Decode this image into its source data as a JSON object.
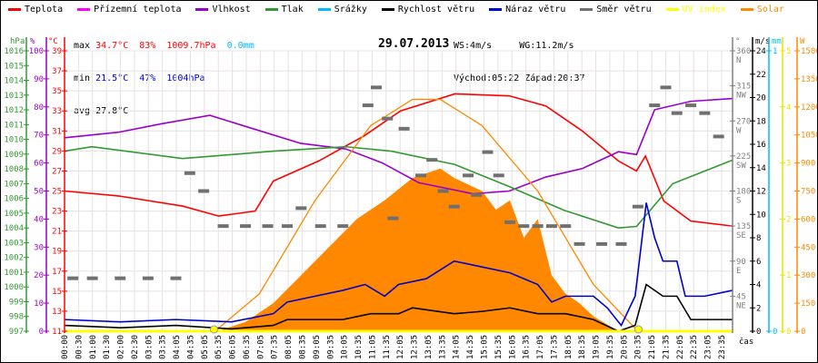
{
  "legend": [
    {
      "label": "Teplota",
      "color": "#ff0000"
    },
    {
      "label": "Přízemní teplota",
      "color": "#ff00ff"
    },
    {
      "label": "Vlhkost",
      "color": "#9900cc"
    },
    {
      "label": "Tlak",
      "color": "#339933"
    },
    {
      "label": "Srážky",
      "color": "#00bbff"
    },
    {
      "label": "Rychlost větru",
      "color": "#000000"
    },
    {
      "label": "Náraz větru",
      "color": "#0000cc"
    },
    {
      "label": "Směr větru",
      "color": "#707070"
    },
    {
      "label": "UV index",
      "color": "#ffff00"
    },
    {
      "label": "Solar",
      "color": "#ff8800"
    }
  ],
  "stats": {
    "max_label": "max",
    "max_temp": "34.7°C",
    "max_hum": "83%",
    "max_press": "1009.7hPa",
    "max_rain": "0.0mm",
    "min_label": "min",
    "min_temp": "21.5°C",
    "min_hum": "47%",
    "min_press": "1004hPa",
    "avg_label": "avg",
    "avg_temp": "27.8°C",
    "ws": "WS:4m/s",
    "wg": "WG:11.2m/s",
    "sunrise": "Východ:05:22",
    "sunset": "Západ:20:37"
  },
  "chart_data": {
    "type": "line",
    "title": "29.07.2013",
    "xlabel": "čas",
    "x_ticks": [
      "00:00",
      "00:30",
      "01:00",
      "01:30",
      "02:00",
      "02:30",
      "03:05",
      "03:35",
      "04:05",
      "04:35",
      "05:05",
      "05:35",
      "06:05",
      "06:35",
      "07:05",
      "07:35",
      "08:05",
      "08:35",
      "09:05",
      "09:35",
      "10:05",
      "10:35",
      "11:05",
      "11:35",
      "12:05",
      "12:35",
      "13:05",
      "13:35",
      "14:05",
      "14:35",
      "15:05",
      "15:35",
      "16:05",
      "16:35",
      "17:05",
      "17:35",
      "18:05",
      "18:35",
      "19:05",
      "19:35",
      "20:05",
      "20:35",
      "21:05",
      "21:35",
      "22:05",
      "22:35",
      "23:05",
      "23:35"
    ],
    "axes": {
      "pressure": {
        "unit": "hPa",
        "range": [
          997,
          1016
        ],
        "ticks": [
          997,
          998,
          999,
          1000,
          1001,
          1002,
          1003,
          1004,
          1005,
          1006,
          1007,
          1008,
          1009,
          1010,
          1011,
          1012,
          1013,
          1014,
          1015,
          1016
        ]
      },
      "humidity": {
        "unit": "%",
        "range": [
          0,
          100
        ],
        "ticks": [
          0,
          10,
          20,
          30,
          40,
          50,
          60,
          70,
          80,
          90,
          100
        ]
      },
      "temperature": {
        "unit": "°C",
        "range": [
          11,
          39
        ],
        "ticks": [
          11,
          13,
          15,
          17,
          19,
          21,
          23,
          25,
          27,
          29,
          31,
          33,
          35,
          37,
          39
        ]
      },
      "direction": {
        "unit": "°",
        "range": [
          0,
          360
        ],
        "ticks": [
          [
            "45",
            "NE"
          ],
          [
            "90",
            "E"
          ],
          [
            "135",
            "SE"
          ],
          [
            "180",
            "S"
          ],
          [
            "225",
            "SW"
          ],
          [
            "270",
            "W"
          ],
          [
            "315",
            "NW"
          ],
          [
            "360",
            "N"
          ]
        ]
      },
      "wind": {
        "unit": "m/s",
        "range": [
          0,
          24
        ],
        "ticks": [
          0,
          2,
          4,
          6,
          8,
          10,
          12,
          14,
          16,
          18,
          20,
          22,
          24
        ]
      },
      "rain": {
        "unit": "mm",
        "range": [
          0,
          1
        ],
        "ticks": [
          0,
          1
        ]
      },
      "uv": {
        "unit": "",
        "range": [
          0,
          5
        ],
        "ticks": [
          0,
          1,
          2,
          3,
          4,
          5
        ]
      },
      "solar": {
        "unit": "W",
        "range": [
          0,
          1500
        ],
        "ticks": [
          0,
          150,
          300,
          450,
          600,
          750,
          900,
          1050,
          1200,
          1350,
          1500
        ]
      }
    },
    "series": [
      {
        "name": "Teplota",
        "axis": "temperature",
        "color": "#ff0000",
        "points": [
          [
            0,
            25
          ],
          [
            1.96,
            24.5
          ],
          [
            4.24,
            23.5
          ],
          [
            5.54,
            22.5
          ],
          [
            6.85,
            23
          ],
          [
            7.5,
            26
          ],
          [
            9.13,
            28
          ],
          [
            10.76,
            30.5
          ],
          [
            12.07,
            33
          ],
          [
            14.02,
            34.7
          ],
          [
            15.98,
            34.5
          ],
          [
            17.29,
            33.5
          ],
          [
            18.6,
            31
          ],
          [
            19.9,
            28
          ],
          [
            20.55,
            27
          ],
          [
            20.87,
            28.5
          ],
          [
            21.53,
            24
          ],
          [
            22.5,
            22
          ],
          [
            24,
            21.5
          ]
        ]
      },
      {
        "name": "Vlhkost",
        "axis": "humidity",
        "color": "#9900cc",
        "points": [
          [
            0,
            69
          ],
          [
            1.96,
            71
          ],
          [
            3.5,
            74
          ],
          [
            5.22,
            77
          ],
          [
            6.52,
            73
          ],
          [
            8.48,
            67
          ],
          [
            10.11,
            65
          ],
          [
            11.42,
            60
          ],
          [
            12.72,
            53
          ],
          [
            14.68,
            49
          ],
          [
            15.98,
            50
          ],
          [
            17.29,
            55
          ],
          [
            18.6,
            58
          ],
          [
            19.9,
            64
          ],
          [
            20.55,
            63
          ],
          [
            21.2,
            79
          ],
          [
            22.5,
            82
          ],
          [
            24,
            83
          ]
        ]
      },
      {
        "name": "Tlak",
        "axis": "pressure",
        "color": "#339933",
        "points": [
          [
            0,
            1009.2
          ],
          [
            0.98,
            1009.5
          ],
          [
            4.24,
            1008.7
          ],
          [
            7.5,
            1009.2
          ],
          [
            10.11,
            1009.5
          ],
          [
            11.74,
            1009.2
          ],
          [
            14.02,
            1008.3
          ],
          [
            15.98,
            1006.8
          ],
          [
            17.94,
            1005.2
          ],
          [
            19.9,
            1004
          ],
          [
            20.55,
            1004.1
          ],
          [
            21.85,
            1007
          ],
          [
            24,
            1008.6
          ]
        ]
      },
      {
        "name": "Solar teoretický",
        "axis": "solar",
        "color": "#ff8800",
        "points": [
          [
            5.4,
            0
          ],
          [
            7,
            200
          ],
          [
            9,
            700
          ],
          [
            11,
            1100
          ],
          [
            12.5,
            1240
          ],
          [
            13.5,
            1240
          ],
          [
            15,
            1100
          ],
          [
            17,
            750
          ],
          [
            19,
            250
          ],
          [
            20.6,
            0
          ]
        ]
      },
      {
        "name": "Rychlost větru",
        "axis": "wind",
        "color": "#000000",
        "points": [
          [
            0,
            0.5
          ],
          [
            2,
            0.3
          ],
          [
            4,
            0.5
          ],
          [
            6,
            0.2
          ],
          [
            7.5,
            0.5
          ],
          [
            8,
            1
          ],
          [
            10,
            1
          ],
          [
            11,
            1.5
          ],
          [
            12,
            1.5
          ],
          [
            12.5,
            2
          ],
          [
            14,
            1.5
          ],
          [
            15,
            1.7
          ],
          [
            16,
            2
          ],
          [
            17,
            1.5
          ],
          [
            18,
            1.5
          ],
          [
            19,
            1
          ],
          [
            19.9,
            0
          ],
          [
            20.5,
            0.5
          ],
          [
            20.9,
            4
          ],
          [
            21.5,
            3
          ],
          [
            22,
            3
          ],
          [
            22.5,
            1
          ],
          [
            24,
            1
          ]
        ]
      },
      {
        "name": "Náraz větru",
        "axis": "wind",
        "color": "#0000cc",
        "points": [
          [
            0,
            1
          ],
          [
            2,
            0.8
          ],
          [
            4,
            1
          ],
          [
            6,
            0.8
          ],
          [
            7.5,
            1.5
          ],
          [
            8,
            2.5
          ],
          [
            9,
            3
          ],
          [
            10,
            3.5
          ],
          [
            10.8,
            4
          ],
          [
            11.5,
            3
          ],
          [
            12,
            4
          ],
          [
            13,
            4.5
          ],
          [
            14,
            6
          ],
          [
            15,
            5.5
          ],
          [
            16,
            5
          ],
          [
            17,
            4
          ],
          [
            17.5,
            2.5
          ],
          [
            18,
            3
          ],
          [
            19,
            3
          ],
          [
            19.5,
            2
          ],
          [
            20,
            0.5
          ],
          [
            20.5,
            3
          ],
          [
            20.9,
            11
          ],
          [
            21.2,
            8
          ],
          [
            21.5,
            6
          ],
          [
            22,
            6
          ],
          [
            22.3,
            3
          ],
          [
            23,
            3
          ],
          [
            24,
            3.5
          ]
        ]
      }
    ],
    "solar_area": {
      "name": "Solar",
      "axis": "solar",
      "color": "#ff8800",
      "points": [
        [
          5.5,
          0
        ],
        [
          6.5,
          50
        ],
        [
          7.5,
          150
        ],
        [
          8.5,
          300
        ],
        [
          9.5,
          450
        ],
        [
          10.5,
          600
        ],
        [
          11.5,
          700
        ],
        [
          12.5,
          820
        ],
        [
          13.5,
          870
        ],
        [
          14,
          820
        ],
        [
          15,
          750
        ],
        [
          15.5,
          650
        ],
        [
          16,
          700
        ],
        [
          16.5,
          500
        ],
        [
          17,
          600
        ],
        [
          17.5,
          300
        ],
        [
          18,
          200
        ],
        [
          18.5,
          150
        ],
        [
          19,
          80
        ],
        [
          19.9,
          0
        ]
      ]
    },
    "wind_direction": {
      "axis": "direction",
      "color": "#707070",
      "points": [
        [
          0.3,
          68
        ],
        [
          1,
          68
        ],
        [
          2,
          68
        ],
        [
          3,
          68
        ],
        [
          4,
          68
        ],
        [
          4.5,
          203
        ],
        [
          5,
          180
        ],
        [
          5.7,
          135
        ],
        [
          6.5,
          135
        ],
        [
          7.3,
          135
        ],
        [
          8,
          135
        ],
        [
          8.5,
          158
        ],
        [
          9.2,
          135
        ],
        [
          10,
          135
        ],
        [
          10.9,
          290
        ],
        [
          11.2,
          313
        ],
        [
          11.6,
          273
        ],
        [
          11.8,
          145
        ],
        [
          12.2,
          260
        ],
        [
          12.8,
          200
        ],
        [
          13.2,
          220
        ],
        [
          13.6,
          180
        ],
        [
          14,
          160
        ],
        [
          14.5,
          200
        ],
        [
          14.8,
          175
        ],
        [
          15.2,
          230
        ],
        [
          15.6,
          200
        ],
        [
          16,
          140
        ],
        [
          16.5,
          135
        ],
        [
          17,
          135
        ],
        [
          17.5,
          135
        ],
        [
          18,
          135
        ],
        [
          18.5,
          112
        ],
        [
          19.3,
          112
        ],
        [
          20,
          112
        ],
        [
          20.6,
          160
        ],
        [
          21.2,
          290
        ],
        [
          21.6,
          313
        ],
        [
          22,
          280
        ],
        [
          22.5,
          290
        ],
        [
          23,
          280
        ],
        [
          23.5,
          250
        ]
      ]
    },
    "uv": {
      "axis": "uv",
      "color": "#ffff00",
      "points": [
        [
          0,
          0
        ],
        [
          24,
          0
        ]
      ],
      "markers": [
        5.37,
        20.62
      ]
    }
  }
}
